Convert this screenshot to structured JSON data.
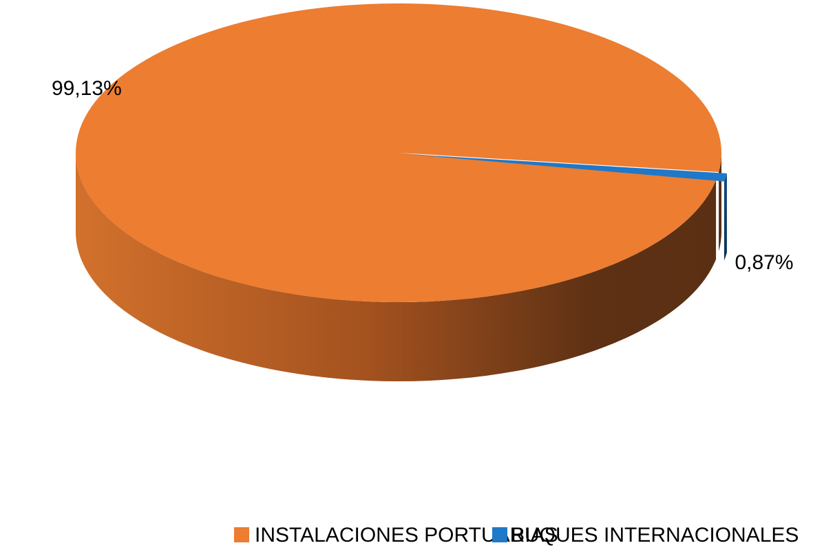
{
  "chart_data": {
    "type": "pie",
    "categories": [
      "INSTALACIONES PORTUARIAS",
      "BUQUES INTERNACIONALES"
    ],
    "values": [
      99.13,
      0.87
    ],
    "value_labels": [
      "99,13%",
      "0,87%"
    ],
    "colors": [
      "#ed7d31",
      "#1f78c8"
    ],
    "legend": "bottom"
  }
}
